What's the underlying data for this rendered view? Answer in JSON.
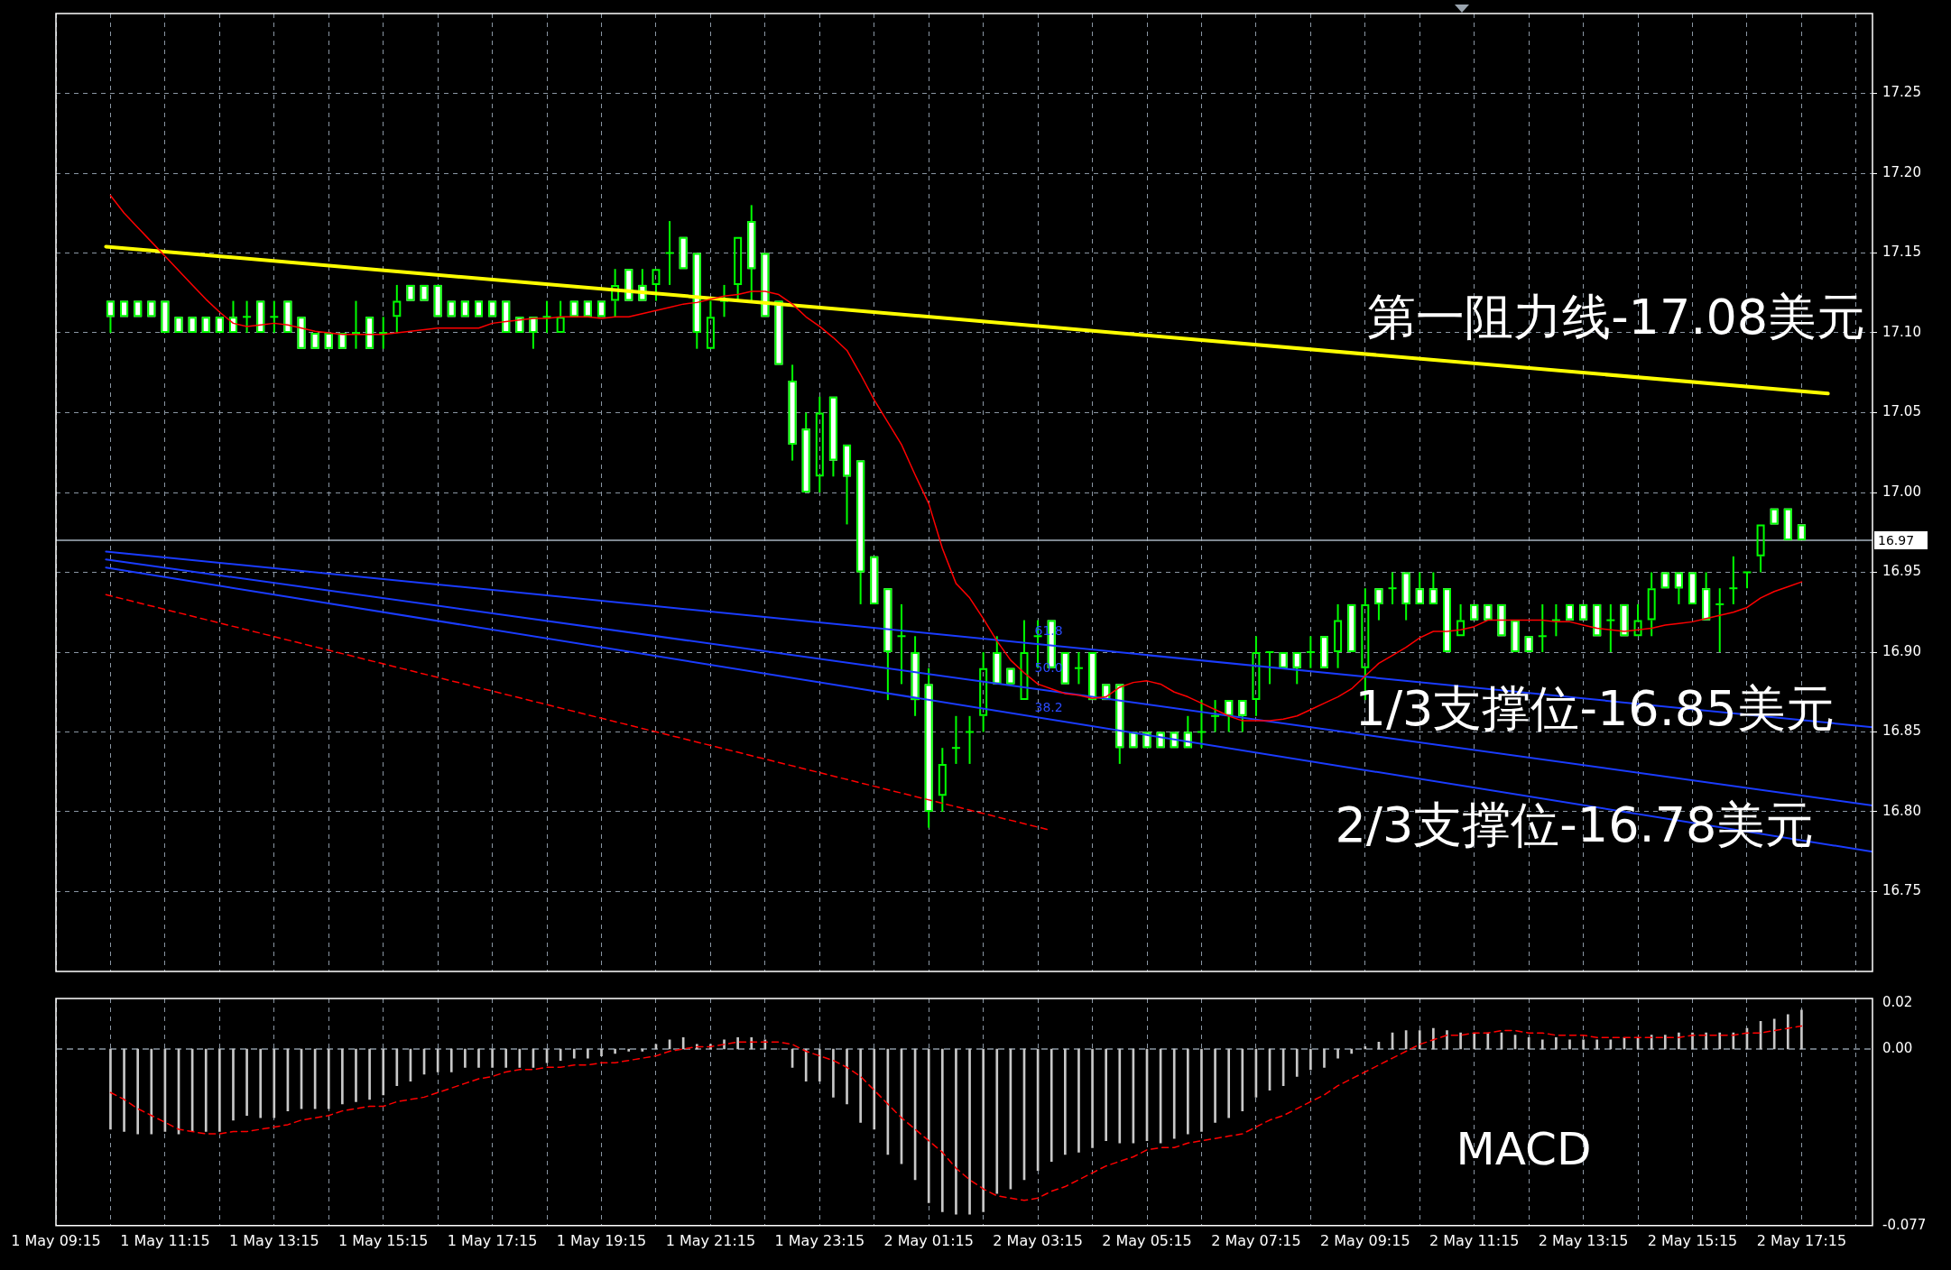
{
  "chart_data": [
    {
      "type": "candlestick",
      "color": "#00ff00",
      "x": [
        "--05-01T10:15",
        "--05-01T10:30",
        "--05-01T10:45",
        "--05-01T11:00",
        "--05-01T11:15",
        "--05-01T11:30",
        "--05-01T11:45",
        "--05-01T12:00",
        "--05-01T12:15",
        "--05-01T12:30",
        "--05-01T12:45",
        "--05-01T13:00",
        "--05-01T13:15",
        "--05-01T13:30",
        "--05-01T13:45",
        "--05-01T14:00",
        "--05-01T14:15",
        "--05-01T14:30",
        "--05-01T14:45",
        "--05-01T15:00",
        "--05-01T15:15",
        "--05-01T15:30",
        "--05-01T15:45",
        "--05-01T16:00",
        "--05-01T16:15",
        "--05-01T16:30",
        "--05-01T16:45",
        "--05-01T17:00",
        "--05-01T17:15",
        "--05-01T17:30",
        "--05-01T17:45",
        "--05-01T18:00",
        "--05-01T18:15",
        "--05-01T18:30",
        "--05-01T18:45",
        "--05-01T19:00",
        "--05-01T19:15",
        "--05-01T19:30",
        "--05-01T19:45",
        "--05-01T20:00",
        "--05-01T20:15",
        "--05-01T20:30",
        "--05-01T20:45",
        "--05-01T21:00",
        "--05-01T21:15",
        "--05-01T21:30",
        "--05-01T21:45",
        "--05-01T22:00",
        "--05-01T22:15",
        "--05-01T22:30",
        "--05-01T22:45",
        "--05-01T23:00",
        "--05-01T23:15",
        "--05-01T23:30",
        "--05-01T23:45",
        "--05-02T00:00",
        "--05-02T00:15",
        "--05-02T00:30",
        "--05-02T00:45",
        "--05-02T01:00",
        "--05-02T01:15",
        "--05-02T01:30",
        "--05-02T01:45",
        "--05-02T02:00",
        "--05-02T02:15",
        "--05-02T02:30",
        "--05-02T02:45",
        "--05-02T03:00",
        "--05-02T03:15",
        "--05-02T03:30",
        "--05-02T03:45",
        "--05-02T04:00",
        "--05-02T04:15",
        "--05-02T04:30",
        "--05-02T04:45",
        "--05-02T05:00",
        "--05-02T05:15",
        "--05-02T05:30",
        "--05-02T05:45",
        "--05-02T06:00",
        "--05-02T06:15",
        "--05-02T06:30",
        "--05-02T06:45",
        "--05-02T07:00",
        "--05-02T07:15",
        "--05-02T07:30",
        "--05-02T07:45",
        "--05-02T08:00",
        "--05-02T08:15",
        "--05-02T08:30",
        "--05-02T08:45",
        "--05-02T09:00",
        "--05-02T09:15",
        "--05-02T09:30",
        "--05-02T09:45",
        "--05-02T10:00",
        "--05-02T10:15",
        "--05-02T10:30",
        "--05-02T10:45",
        "--05-02T11:00",
        "--05-02T11:15",
        "--05-02T11:30",
        "--05-02T11:45",
        "--05-02T12:00",
        "--05-02T12:15",
        "--05-02T12:30",
        "--05-02T12:45",
        "--05-02T13:00",
        "--05-02T13:15",
        "--05-02T13:30",
        "--05-02T13:45",
        "--05-02T14:00",
        "--05-02T14:15",
        "--05-02T14:30",
        "--05-02T14:45",
        "--05-02T15:00",
        "--05-02T15:15",
        "--05-02T15:30",
        "--05-02T15:45",
        "--05-02T16:00",
        "--05-02T16:15",
        "--05-02T16:30",
        "--05-02T16:45",
        "--05-02T17:00",
        "--05-02T17:15"
      ],
      "ohlc": [
        [
          17.12,
          17.12,
          17.1,
          17.11
        ],
        [
          17.12,
          17.12,
          17.11,
          17.11
        ],
        [
          17.12,
          17.12,
          17.11,
          17.11
        ],
        [
          17.12,
          17.12,
          17.11,
          17.11
        ],
        [
          17.12,
          17.12,
          17.1,
          17.1
        ],
        [
          17.11,
          17.11,
          17.1,
          17.1
        ],
        [
          17.11,
          17.11,
          17.1,
          17.1
        ],
        [
          17.11,
          17.11,
          17.1,
          17.1
        ],
        [
          17.11,
          17.11,
          17.1,
          17.1
        ],
        [
          17.11,
          17.12,
          17.1,
          17.1
        ],
        [
          17.11,
          17.12,
          17.1,
          17.11
        ],
        [
          17.12,
          17.12,
          17.1,
          17.1
        ],
        [
          17.11,
          17.12,
          17.1,
          17.11
        ],
        [
          17.12,
          17.12,
          17.1,
          17.1
        ],
        [
          17.11,
          17.11,
          17.09,
          17.09
        ],
        [
          17.1,
          17.1,
          17.09,
          17.09
        ],
        [
          17.1,
          17.1,
          17.09,
          17.09
        ],
        [
          17.1,
          17.1,
          17.09,
          17.09
        ],
        [
          17.1,
          17.12,
          17.09,
          17.1
        ],
        [
          17.11,
          17.11,
          17.09,
          17.09
        ],
        [
          17.1,
          17.11,
          17.09,
          17.1
        ],
        [
          17.11,
          17.13,
          17.1,
          17.12
        ],
        [
          17.13,
          17.13,
          17.12,
          17.12
        ],
        [
          17.13,
          17.13,
          17.12,
          17.12
        ],
        [
          17.13,
          17.13,
          17.11,
          17.11
        ],
        [
          17.12,
          17.12,
          17.11,
          17.11
        ],
        [
          17.12,
          17.12,
          17.11,
          17.11
        ],
        [
          17.12,
          17.12,
          17.11,
          17.11
        ],
        [
          17.12,
          17.12,
          17.11,
          17.11
        ],
        [
          17.12,
          17.12,
          17.1,
          17.1
        ],
        [
          17.11,
          17.11,
          17.1,
          17.1
        ],
        [
          17.11,
          17.11,
          17.09,
          17.1
        ],
        [
          17.11,
          17.12,
          17.1,
          17.11
        ],
        [
          17.1,
          17.12,
          17.1,
          17.11
        ],
        [
          17.12,
          17.12,
          17.11,
          17.11
        ],
        [
          17.12,
          17.12,
          17.11,
          17.11
        ],
        [
          17.12,
          17.12,
          17.11,
          17.11
        ],
        [
          17.12,
          17.14,
          17.11,
          17.13
        ],
        [
          17.14,
          17.14,
          17.12,
          17.12
        ],
        [
          17.13,
          17.14,
          17.12,
          17.12
        ],
        [
          17.13,
          17.14,
          17.12,
          17.14
        ],
        [
          17.15,
          17.17,
          17.13,
          17.15
        ],
        [
          17.16,
          17.16,
          17.14,
          17.14
        ],
        [
          17.15,
          17.15,
          17.09,
          17.1
        ],
        [
          17.09,
          17.12,
          17.09,
          17.11
        ],
        [
          17.12,
          17.13,
          17.11,
          17.12
        ],
        [
          17.13,
          17.16,
          17.12,
          17.16
        ],
        [
          17.17,
          17.18,
          17.12,
          17.14
        ],
        [
          17.15,
          17.15,
          17.11,
          17.11
        ],
        [
          17.12,
          17.12,
          17.08,
          17.08
        ],
        [
          17.07,
          17.08,
          17.02,
          17.03
        ],
        [
          17.04,
          17.05,
          17,
          17
        ],
        [
          17.01,
          17.06,
          17,
          17.05
        ],
        [
          17.06,
          17.06,
          17.01,
          17.02
        ],
        [
          17.03,
          17.03,
          16.98,
          17.01
        ],
        [
          17.02,
          17.02,
          16.93,
          16.95
        ],
        [
          16.96,
          16.96,
          16.93,
          16.93
        ],
        [
          16.94,
          16.94,
          16.87,
          16.9
        ],
        [
          16.91,
          16.93,
          16.88,
          16.91
        ],
        [
          16.9,
          16.91,
          16.86,
          16.87
        ],
        [
          16.88,
          16.89,
          16.79,
          16.8
        ],
        [
          16.81,
          16.84,
          16.8,
          16.83
        ],
        [
          16.84,
          16.86,
          16.83,
          16.84
        ],
        [
          16.85,
          16.86,
          16.83,
          16.85
        ],
        [
          16.86,
          16.9,
          16.85,
          16.89
        ],
        [
          16.9,
          16.91,
          16.88,
          16.88
        ],
        [
          16.89,
          16.89,
          16.88,
          16.88
        ],
        [
          16.87,
          16.92,
          16.87,
          16.9
        ],
        [
          16.91,
          16.92,
          16.89,
          16.91
        ],
        [
          16.92,
          16.92,
          16.89,
          16.89
        ],
        [
          16.9,
          16.9,
          16.88,
          16.88
        ],
        [
          16.89,
          16.9,
          16.88,
          16.89
        ],
        [
          16.9,
          16.9,
          16.87,
          16.87
        ],
        [
          16.88,
          16.88,
          16.87,
          16.87
        ],
        [
          16.88,
          16.88,
          16.83,
          16.84
        ],
        [
          16.85,
          16.85,
          16.84,
          16.84
        ],
        [
          16.85,
          16.85,
          16.84,
          16.84
        ],
        [
          16.85,
          16.85,
          16.84,
          16.84
        ],
        [
          16.85,
          16.85,
          16.84,
          16.84
        ],
        [
          16.85,
          16.86,
          16.84,
          16.84
        ],
        [
          16.85,
          16.87,
          16.84,
          16.85
        ],
        [
          16.86,
          16.87,
          16.85,
          16.86
        ],
        [
          16.87,
          16.87,
          16.85,
          16.86
        ],
        [
          16.87,
          16.87,
          16.85,
          16.86
        ],
        [
          16.87,
          16.91,
          16.86,
          16.9
        ],
        [
          16.9,
          16.9,
          16.88,
          16.9
        ],
        [
          16.9,
          16.9,
          16.89,
          16.89
        ],
        [
          16.9,
          16.9,
          16.88,
          16.89
        ],
        [
          16.9,
          16.91,
          16.89,
          16.9
        ],
        [
          16.91,
          16.91,
          16.89,
          16.89
        ],
        [
          16.9,
          16.93,
          16.89,
          16.92
        ],
        [
          16.93,
          16.93,
          16.9,
          16.9
        ],
        [
          16.89,
          16.94,
          16.87,
          16.93
        ],
        [
          16.94,
          16.94,
          16.92,
          16.93
        ],
        [
          16.94,
          16.95,
          16.93,
          16.94
        ],
        [
          16.95,
          16.95,
          16.92,
          16.93
        ],
        [
          16.94,
          16.95,
          16.93,
          16.93
        ],
        [
          16.94,
          16.95,
          16.93,
          16.93
        ],
        [
          16.94,
          16.94,
          16.9,
          16.9
        ],
        [
          16.91,
          16.93,
          16.91,
          16.92
        ],
        [
          16.93,
          16.93,
          16.92,
          16.92
        ],
        [
          16.93,
          16.93,
          16.92,
          16.92
        ],
        [
          16.93,
          16.93,
          16.91,
          16.91
        ],
        [
          16.92,
          16.92,
          16.9,
          16.9
        ],
        [
          16.91,
          16.91,
          16.9,
          16.9
        ],
        [
          16.91,
          16.93,
          16.9,
          16.91
        ],
        [
          16.92,
          16.93,
          16.91,
          16.92
        ],
        [
          16.93,
          16.93,
          16.92,
          16.92
        ],
        [
          16.93,
          16.93,
          16.92,
          16.92
        ],
        [
          16.93,
          16.93,
          16.91,
          16.91
        ],
        [
          16.92,
          16.93,
          16.9,
          16.92
        ],
        [
          16.93,
          16.93,
          16.91,
          16.91
        ],
        [
          16.91,
          16.93,
          16.91,
          16.92
        ],
        [
          16.92,
          16.95,
          16.91,
          16.94
        ],
        [
          16.95,
          16.95,
          16.94,
          16.94
        ],
        [
          16.95,
          16.95,
          16.93,
          16.94
        ],
        [
          16.95,
          16.95,
          16.93,
          16.93
        ],
        [
          16.94,
          16.95,
          16.92,
          16.92
        ],
        [
          16.93,
          16.94,
          16.9,
          16.93
        ],
        [
          16.94,
          16.96,
          16.93,
          16.94
        ],
        [
          16.95,
          16.95,
          16.94,
          16.95
        ],
        [
          16.96,
          16.98,
          16.95,
          16.98
        ],
        [
          16.99,
          16.99,
          16.98,
          16.98
        ],
        [
          16.99,
          16.99,
          16.97,
          16.97
        ],
        [
          16.98,
          16.98,
          16.97,
          16.97
        ]
      ],
      "colors": [
        "#ffffff",
        "#ffffff",
        "#ffffff",
        "#ffffff",
        "#ffffff",
        "#ffffff",
        "#ffffff",
        "#ffffff",
        "#ffffff",
        "#ffffff",
        "#00ff00",
        "#ffffff",
        "#00ff00",
        "#ffffff",
        "#ffffff",
        "#ffffff",
        "#ffffff",
        "#ffffff",
        "#00ff00",
        "#ffffff",
        "#00ff00",
        "#00ff00",
        "#ffffff",
        "#ffffff",
        "#ffffff",
        "#ffffff",
        "#ffffff",
        "#ffffff",
        "#ffffff",
        "#ffffff",
        "#ffffff",
        "#ffffff",
        "#00ff00",
        "#00ff00",
        "#ffffff",
        "#ffffff",
        "#ffffff",
        "#00ff00",
        "#ffffff",
        "#ffffff",
        "#00ff00",
        "#00ff00",
        "#ffffff",
        "#ffffff",
        "#00ff00",
        "#00ff00",
        "#00ff00",
        "#ffffff",
        "#ffffff",
        "#ffffff",
        "#ffffff",
        "#ffffff",
        "#00ff00",
        "#ffffff",
        "#ffffff",
        "#ffffff",
        "#ffffff",
        "#ffffff",
        "#00ff00",
        "#ffffff",
        "#ffffff",
        "#00ff00",
        "#00ff00",
        "#00ff00",
        "#00ff00",
        "#ffffff",
        "#ffffff",
        "#00ff00",
        "#00ff00",
        "#ffffff",
        "#ffffff",
        "#00ff00",
        "#ffffff",
        "#ffffff",
        "#ffffff",
        "#ffffff",
        "#ffffff",
        "#ffffff",
        "#ffffff",
        "#ffffff",
        "#00ff00",
        "#00ff00",
        "#ffffff",
        "#ffffff",
        "#00ff00",
        "#00ff00",
        "#ffffff",
        "#ffffff",
        "#00ff00",
        "#ffffff",
        "#00ff00",
        "#ffffff",
        "#00ff00",
        "#ffffff",
        "#00ff00",
        "#ffffff",
        "#ffffff",
        "#ffffff",
        "#ffffff",
        "#00ff00",
        "#ffffff",
        "#ffffff",
        "#ffffff",
        "#ffffff",
        "#ffffff",
        "#00ff00",
        "#00ff00",
        "#ffffff",
        "#ffffff",
        "#ffffff",
        "#00ff00",
        "#ffffff",
        "#00ff00",
        "#00ff00",
        "#ffffff",
        "#ffffff",
        "#ffffff",
        "#ffffff",
        "#00ff00",
        "#00ff00",
        "#00ff00",
        "#00ff00",
        "#ffffff",
        "#ffffff",
        "#ffffff"
      ],
      "series": [
        {
          "type": "line",
          "color": "#ff0000",
          "values": [
            17.186,
            17.175,
            17.166,
            17.157,
            17.148,
            17.139,
            17.13,
            17.121,
            17.113,
            17.106,
            17.104,
            17.105,
            17.106,
            17.105,
            17.103,
            17.101,
            17.1,
            17.099,
            17.099,
            17.099,
            17.099,
            17.1,
            17.101,
            17.102,
            17.103,
            17.103,
            17.103,
            17.103,
            17.106,
            17.107,
            17.108,
            17.109,
            17.109,
            17.11,
            17.11,
            17.11,
            17.109,
            17.11,
            17.11,
            17.112,
            17.114,
            17.116,
            17.118,
            17.119,
            17.121,
            17.123,
            17.124,
            17.126,
            17.126,
            17.124,
            17.118,
            17.11,
            17.104,
            17.097,
            17.089,
            17.074,
            17.058,
            17.044,
            17.03,
            17.011,
            16.993,
            16.965,
            16.943,
            16.934,
            16.921,
            16.907,
            16.895,
            16.887,
            16.88,
            16.877,
            16.874,
            16.873,
            16.871,
            16.872,
            16.878,
            16.881,
            16.882,
            16.88,
            16.875,
            16.872,
            16.868,
            16.864,
            16.86,
            16.857,
            16.857,
            16.857,
            16.858,
            16.86,
            16.864,
            16.868,
            16.872,
            16.877,
            16.885,
            16.893,
            16.898,
            16.903,
            16.909,
            16.913,
            16.913,
            16.914,
            16.916,
            16.92,
            16.92,
            16.92,
            16.92,
            16.92,
            16.919,
            16.919,
            16.917,
            16.915,
            16.914,
            16.913,
            16.914,
            16.915,
            16.917,
            16.918,
            16.919,
            16.921,
            16.923,
            16.925,
            16.928,
            16.934,
            16.938,
            16.941,
            16.944
          ]
        },
        {
          "type": "line",
          "color": "#ffff00",
          "x": [
            "--05-01T10:10",
            "--05-02T17:44"
          ],
          "values": [
            17.154,
            17.062
          ]
        },
        {
          "type": "line",
          "color": "#1a3cff",
          "x": [
            "--05-01T10:10",
            "--05-02T18:33"
          ],
          "values": [
            16.963,
            16.853
          ]
        },
        {
          "type": "line",
          "color": "#1a3cff",
          "x": [
            "--05-01T10:10",
            "--05-02T18:33"
          ],
          "values": [
            16.958,
            16.804
          ]
        },
        {
          "type": "line",
          "color": "#1a3cff",
          "x": [
            "--05-01T10:10",
            "--05-02T18:33"
          ],
          "values": [
            16.953,
            16.775
          ]
        },
        {
          "type": "line",
          "color": "#ff0000",
          "line_style": "dashed",
          "x": [
            "--05-01T10:10",
            "--05-02T03:25"
          ],
          "values": [
            16.936,
            16.789
          ]
        }
      ],
      "xlim": [
        "--05-01T09:15",
        "--05-02T18:33"
      ],
      "xticks": [
        "--05-01T09:15",
        "--05-01T10:15",
        "--05-01T11:15",
        "--05-01T12:15",
        "--05-01T13:15",
        "--05-01T14:15",
        "--05-01T15:15",
        "--05-01T16:15",
        "--05-01T17:15",
        "--05-01T18:15",
        "--05-01T19:15",
        "--05-01T20:15",
        "--05-01T21:15",
        "--05-01T22:15",
        "--05-01T23:15",
        "--05-02T00:15",
        "--05-02T01:15",
        "--05-02T02:15",
        "--05-02T03:15",
        "--05-02T04:15",
        "--05-02T05:15",
        "--05-02T06:15",
        "--05-02T07:15",
        "--05-02T08:15",
        "--05-02T09:15",
        "--05-02T10:15",
        "--05-02T11:15",
        "--05-02T12:15",
        "--05-02T13:15",
        "--05-02T14:15",
        "--05-02T15:15",
        "--05-02T16:15",
        "--05-02T17:15",
        "--05-02T18:15"
      ],
      "ylim": [
        16.7,
        17.3
      ],
      "yticks": [
        16.75,
        {
          "value": 16.8,
          "label": "16.80"
        },
        16.85,
        {
          "value": 16.9,
          "label": "16.90"
        },
        16.95,
        {
          "value": 17,
          "label": "17.00"
        },
        17.05,
        {
          "value": 17.1,
          "label": "17.10"
        },
        17.15,
        {
          "value": 17.2,
          "label": "17.20"
        },
        17.25
      ],
      "tick_labels": "y",
      "grid": true,
      "ref_lines": [
        {
          "axis": "y",
          "value": 16.97,
          "label": "16.97",
          "color": "#a8b4c0"
        }
      ],
      "annotations": [
        "第一阻力线-17.08美元",
        "1/3支撑位-16.85美元",
        "2/3支撑位-16.78美元",
        "61.8",
        "50.0",
        "38.2"
      ]
    },
    {
      "type": "bar",
      "x": [
        "--05-01T10:15",
        "--05-01T10:30",
        "--05-01T10:45",
        "--05-01T11:00",
        "--05-01T11:15",
        "--05-01T11:30",
        "--05-01T11:45",
        "--05-01T12:00",
        "--05-01T12:15",
        "--05-01T12:30",
        "--05-01T12:45",
        "--05-01T13:00",
        "--05-01T13:15",
        "--05-01T13:30",
        "--05-01T13:45",
        "--05-01T14:00",
        "--05-01T14:15",
        "--05-01T14:30",
        "--05-01T14:45",
        "--05-01T15:00",
        "--05-01T15:15",
        "--05-01T15:30",
        "--05-01T15:45",
        "--05-01T16:00",
        "--05-01T16:15",
        "--05-01T16:30",
        "--05-01T16:45",
        "--05-01T17:00",
        "--05-01T17:15",
        "--05-01T17:30",
        "--05-01T17:45",
        "--05-01T18:00",
        "--05-01T18:15",
        "--05-01T18:30",
        "--05-01T18:45",
        "--05-01T19:00",
        "--05-01T19:15",
        "--05-01T19:30",
        "--05-01T19:45",
        "--05-01T20:00",
        "--05-01T20:15",
        "--05-01T20:30",
        "--05-01T20:45",
        "--05-01T21:00",
        "--05-01T21:15",
        "--05-01T21:30",
        "--05-01T21:45",
        "--05-01T22:00",
        "--05-01T22:15",
        "--05-01T22:30",
        "--05-01T22:45",
        "--05-01T23:00",
        "--05-01T23:15",
        "--05-01T23:30",
        "--05-01T23:45",
        "--05-02T00:00",
        "--05-02T00:15",
        "--05-02T00:30",
        "--05-02T00:45",
        "--05-02T01:00",
        "--05-02T01:15",
        "--05-02T01:30",
        "--05-02T01:45",
        "--05-02T02:00",
        "--05-02T02:15",
        "--05-02T02:30",
        "--05-02T02:45",
        "--05-02T03:00",
        "--05-02T03:15",
        "--05-02T03:30",
        "--05-02T03:45",
        "--05-02T04:00",
        "--05-02T04:15",
        "--05-02T04:30",
        "--05-02T04:45",
        "--05-02T05:00",
        "--05-02T05:15",
        "--05-02T05:30",
        "--05-02T05:45",
        "--05-02T06:00",
        "--05-02T06:15",
        "--05-02T06:30",
        "--05-02T06:45",
        "--05-02T07:00",
        "--05-02T07:15",
        "--05-02T07:30",
        "--05-02T07:45",
        "--05-02T08:00",
        "--05-02T08:15",
        "--05-02T08:30",
        "--05-02T08:45",
        "--05-02T09:00",
        "--05-02T09:15",
        "--05-02T09:30",
        "--05-02T09:45",
        "--05-02T10:00",
        "--05-02T10:15",
        "--05-02T10:30",
        "--05-02T10:45",
        "--05-02T11:00",
        "--05-02T11:15",
        "--05-02T11:30",
        "--05-02T11:45",
        "--05-02T12:00",
        "--05-02T12:15",
        "--05-02T12:30",
        "--05-02T12:45",
        "--05-02T13:00",
        "--05-02T13:15",
        "--05-02T13:30",
        "--05-02T13:45",
        "--05-02T14:00",
        "--05-02T14:15",
        "--05-02T14:30",
        "--05-02T14:45",
        "--05-02T15:00",
        "--05-02T15:15",
        "--05-02T15:30",
        "--05-02T15:45",
        "--05-02T16:00",
        "--05-02T16:15",
        "--05-02T16:30",
        "--05-02T16:45",
        "--05-02T17:00",
        "--05-02T17:15"
      ],
      "series": [
        {
          "color": "#c8c8c8",
          "values": [
            -0.035,
            -0.036,
            -0.037,
            -0.037,
            -0.036,
            -0.037,
            -0.036,
            -0.036,
            -0.036,
            -0.031,
            -0.029,
            -0.03,
            -0.03,
            -0.027,
            -0.026,
            -0.026,
            -0.026,
            -0.024,
            -0.023,
            -0.022,
            -0.02,
            -0.016,
            -0.014,
            -0.011,
            -0.01,
            -0.01,
            -0.008,
            -0.008,
            -0.008,
            -0.008,
            -0.008,
            -0.008,
            -0.006,
            -0.005,
            -0.004,
            -0.004,
            -0.003,
            -0.002,
            -0.001,
            -0.001,
            0.002,
            0.004,
            0.005,
            0.002,
            0.002,
            0.004,
            0.005,
            0.005,
            0.004,
            0,
            -0.008,
            -0.014,
            -0.014,
            -0.021,
            -0.024,
            -0.032,
            -0.035,
            -0.046,
            -0.05,
            -0.057,
            -0.067,
            -0.071,
            -0.072,
            -0.072,
            -0.071,
            -0.063,
            -0.061,
            -0.057,
            -0.053,
            -0.049,
            -0.046,
            -0.045,
            -0.043,
            -0.04,
            -0.041,
            -0.041,
            -0.04,
            -0.041,
            -0.039,
            -0.037,
            -0.036,
            -0.032,
            -0.03,
            -0.027,
            -0.021,
            -0.018,
            -0.016,
            -0.012,
            -0.009,
            -0.008,
            -0.004,
            -0.002,
            0.001,
            0.003,
            0.007,
            0.008,
            0.008,
            0.009,
            0.008,
            0.007,
            0.007,
            0.007,
            0.007,
            0.006,
            0.005,
            0.004,
            0.005,
            0.004,
            0.004,
            0.004,
            0.004,
            0.005,
            0.005,
            0.006,
            0.006,
            0.007,
            0.007,
            0.007,
            0.007,
            0.007,
            0.009,
            0.012,
            0.013,
            0.015,
            0.017
          ]
        },
        {
          "type": "line",
          "color": "#ff0000",
          "line_style": "dashed",
          "values": [
            -0.019,
            -0.022,
            -0.026,
            -0.029,
            -0.032,
            -0.035,
            -0.036,
            -0.037,
            -0.037,
            -0.036,
            -0.036,
            -0.035,
            -0.034,
            -0.033,
            -0.031,
            -0.03,
            -0.029,
            -0.027,
            -0.026,
            -0.025,
            -0.025,
            -0.023,
            -0.022,
            -0.021,
            -0.019,
            -0.017,
            -0.015,
            -0.013,
            -0.012,
            -0.01,
            -0.009,
            -0.009,
            -0.008,
            -0.008,
            -0.007,
            -0.007,
            -0.006,
            -0.006,
            -0.005,
            -0.004,
            -0.003,
            -0.001,
            0,
            0.001,
            0.001,
            0.002,
            0.003,
            0.003,
            0.003,
            0.003,
            0.002,
            -0.001,
            -0.003,
            -0.005,
            -0.008,
            -0.012,
            -0.018,
            -0.024,
            -0.03,
            -0.035,
            -0.04,
            -0.045,
            -0.052,
            -0.057,
            -0.061,
            -0.064,
            -0.065,
            -0.066,
            -0.065,
            -0.062,
            -0.06,
            -0.057,
            -0.054,
            -0.051,
            -0.049,
            -0.047,
            -0.044,
            -0.043,
            -0.043,
            -0.041,
            -0.04,
            -0.039,
            -0.038,
            -0.037,
            -0.034,
            -0.031,
            -0.029,
            -0.026,
            -0.023,
            -0.02,
            -0.016,
            -0.013,
            -0.01,
            -0.007,
            -0.004,
            -0.001,
            0.002,
            0.004,
            0.006,
            0.006,
            0.007,
            0.007,
            0.008,
            0.008,
            0.007,
            0.007,
            0.006,
            0.006,
            0.006,
            0.005,
            0.005,
            0.005,
            0.005,
            0.005,
            0.005,
            0.005,
            0.006,
            0.006,
            0.006,
            0.006,
            0.007,
            0.007,
            0.008,
            0.009,
            0.01
          ]
        }
      ],
      "xlim": [
        "--05-01T09:15",
        "--05-02T18:33"
      ],
      "xticks": [
        {
          "value": "--05-01T09:15",
          "label": "1 May 09:15"
        },
        {
          "value": "--05-01T10:15",
          "label": null
        },
        {
          "value": "--05-01T11:15",
          "label": "1 May 11:15"
        },
        {
          "value": "--05-01T12:15",
          "label": null
        },
        {
          "value": "--05-01T13:15",
          "label": "1 May 13:15"
        },
        {
          "value": "--05-01T14:15",
          "label": null
        },
        {
          "value": "--05-01T15:15",
          "label": "1 May 15:15"
        },
        {
          "value": "--05-01T16:15",
          "label": null
        },
        {
          "value": "--05-01T17:15",
          "label": "1 May 17:15"
        },
        {
          "value": "--05-01T18:15",
          "label": null
        },
        {
          "value": "--05-01T19:15",
          "label": "1 May 19:15"
        },
        {
          "value": "--05-01T20:15",
          "label": null
        },
        {
          "value": "--05-01T21:15",
          "label": "1 May 21:15"
        },
        {
          "value": "--05-01T22:15",
          "label": null
        },
        {
          "value": "--05-01T23:15",
          "label": "1 May 23:15"
        },
        {
          "value": "--05-02T00:15",
          "label": null
        },
        {
          "value": "--05-02T01:15",
          "label": "2 May 01:15"
        },
        {
          "value": "--05-02T02:15",
          "label": null
        },
        {
          "value": "--05-02T03:15",
          "label": "2 May 03:15"
        },
        {
          "value": "--05-02T04:15",
          "label": null
        },
        {
          "value": "--05-02T05:15",
          "label": "2 May 05:15"
        },
        {
          "value": "--05-02T06:15",
          "label": null
        },
        {
          "value": "--05-02T07:15",
          "label": "2 May 07:15"
        },
        {
          "value": "--05-02T08:15",
          "label": null
        },
        {
          "value": "--05-02T09:15",
          "label": "2 May 09:15"
        },
        {
          "value": "--05-02T10:15",
          "label": null
        },
        {
          "value": "--05-02T11:15",
          "label": "2 May 11:15"
        },
        {
          "value": "--05-02T12:15",
          "label": null
        },
        {
          "value": "--05-02T13:15",
          "label": "2 May 13:15"
        },
        {
          "value": "--05-02T14:15",
          "label": null
        },
        {
          "value": "--05-02T15:15",
          "label": "2 May 15:15"
        },
        {
          "value": "--05-02T16:15",
          "label": null
        },
        {
          "value": "--05-02T17:15",
          "label": "2 May 17:15"
        },
        {
          "value": "--05-02T18:15",
          "label": null
        }
      ],
      "ylim": [
        -0.077,
        0.022
      ],
      "yticks": [
        0.02,
        {
          "value": 0,
          "label": "0.00"
        },
        -0.077
      ],
      "grid": "x",
      "ref_lines": [
        {
          "axis": "y",
          "value": 0,
          "color": "#8a96a3",
          "line_style": "dashed"
        }
      ],
      "annotations": [
        "MACD"
      ]
    }
  ]
}
